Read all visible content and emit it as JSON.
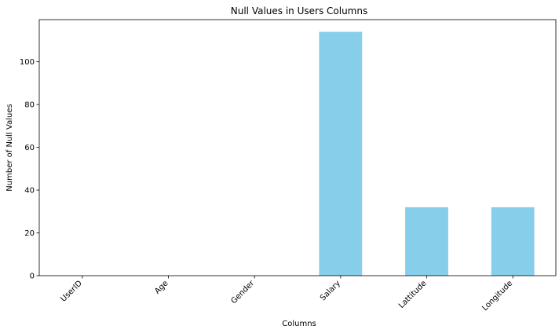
{
  "chart_data": {
    "type": "bar",
    "title": "Null Values in Users Columns",
    "xlabel": "Columns",
    "ylabel": "Number of Null Values",
    "categories": [
      "UserID",
      "Age",
      "Gender",
      "Salary",
      "Lattitude",
      "Longitude"
    ],
    "values": [
      0,
      0,
      0,
      114,
      32,
      32
    ],
    "ylim": [
      0,
      119.7
    ],
    "yticks": [
      0,
      20,
      40,
      60,
      80,
      100
    ],
    "bar_color": "#87CEEB",
    "grid": false,
    "legend": "none"
  }
}
